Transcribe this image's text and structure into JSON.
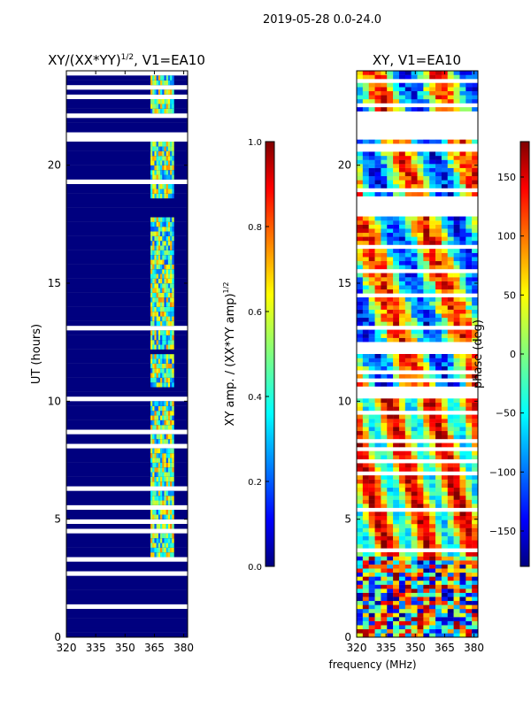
{
  "suptitle": "2019-05-28 0.0-24.0",
  "xlabel_shared": "frequency (MHz)",
  "chart_data": [
    {
      "type": "heatmap",
      "title": "XY/(XX*YY)",
      "title_exponent": "1/2",
      "title_suffix": ", V1=EA10",
      "xlabel": "",
      "ylabel": "UT (hours)",
      "xlim": [
        320,
        382
      ],
      "ylim": [
        0,
        24
      ],
      "xticks": [
        320,
        335,
        350,
        365,
        380
      ],
      "yticks": [
        0,
        5,
        10,
        15,
        20
      ],
      "bright_band_mhz": [
        363,
        375
      ],
      "data_blocks_hours": [
        [
          3.4,
          10.1
        ],
        [
          10.5,
          12.0
        ],
        [
          12.2,
          17.8
        ],
        [
          18.6,
          21.2
        ],
        [
          22.2,
          24.0
        ]
      ],
      "flagged_blocks_hours": [
        [
          0.0,
          3.4
        ],
        [
          21.2,
          22.2
        ]
      ],
      "colorbar": {
        "label": "XY amp. / (XX*YY amp)",
        "label_exponent": "1/2",
        "range": [
          0.0,
          1.0
        ],
        "ticks": [
          "0.0",
          "0.2",
          "0.4",
          "0.6",
          "0.8",
          "1.0"
        ],
        "colormap": "jet"
      }
    },
    {
      "type": "heatmap",
      "title": "XY, V1=EA10",
      "xlabel": "frequency (MHz)",
      "ylabel": "",
      "xlim": [
        320,
        382
      ],
      "ylim": [
        0,
        24
      ],
      "xticks": [
        320,
        335,
        350,
        365,
        380
      ],
      "yticks": [
        0,
        5,
        10,
        15,
        20
      ],
      "noise_region_hours": [
        0.0,
        3.4
      ],
      "colorbar": {
        "label": "phase (deg)",
        "range": [
          -180,
          180
        ],
        "ticks": [
          "150",
          "100",
          "50",
          "0",
          "−50",
          "−100",
          "−150"
        ],
        "tick_values": [
          150,
          100,
          50,
          0,
          -50,
          -100,
          -150
        ],
        "colormap": "jet"
      }
    }
  ],
  "colors": {
    "jet_low": "#00007f",
    "jet_blue": "#0000ff",
    "jet_cyan": "#00ffff",
    "jet_yellow": "#ffff00",
    "jet_red": "#ff0000",
    "jet_high": "#7f0000"
  }
}
